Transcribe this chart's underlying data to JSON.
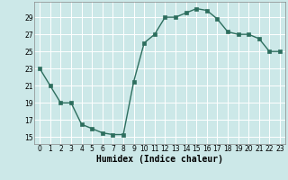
{
  "x": [
    0,
    1,
    2,
    3,
    4,
    5,
    6,
    7,
    8,
    9,
    10,
    11,
    12,
    13,
    14,
    15,
    16,
    17,
    18,
    19,
    20,
    21,
    22,
    23
  ],
  "y": [
    23,
    21,
    19,
    19,
    16.5,
    16,
    15.5,
    15.3,
    15.3,
    21.5,
    26,
    27,
    29,
    29,
    29.5,
    30,
    29.8,
    28.8,
    27.3,
    27,
    27,
    26.5,
    25,
    25
  ],
  "line_color": "#2d6e5e",
  "marker_color": "#2d6e5e",
  "bg_color": "#cce8e8",
  "grid_color": "#ffffff",
  "xlabel": "Humidex (Indice chaleur)",
  "xlim": [
    -0.5,
    23.5
  ],
  "ylim": [
    14.2,
    30.8
  ],
  "yticks": [
    15,
    17,
    19,
    21,
    23,
    25,
    27,
    29
  ],
  "xticks": [
    0,
    1,
    2,
    3,
    4,
    5,
    6,
    7,
    8,
    9,
    10,
    11,
    12,
    13,
    14,
    15,
    16,
    17,
    18,
    19,
    20,
    21,
    22,
    23
  ],
  "tick_fontsize": 5.5,
  "label_fontsize": 7.0,
  "line_width": 1.0,
  "marker_size": 2.2
}
